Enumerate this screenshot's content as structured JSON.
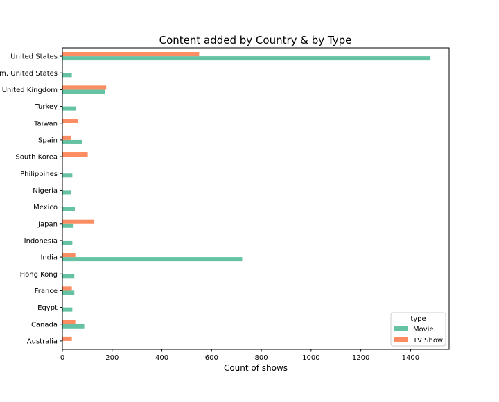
{
  "chart_data": {
    "type": "bar",
    "orientation": "horizontal",
    "title": "Content added by Country & by Type",
    "xlabel": "Count of shows",
    "ylabel": "",
    "xlim": [
      0,
      1555
    ],
    "xticks": [
      0,
      200,
      400,
      600,
      800,
      1000,
      1200,
      1400
    ],
    "grid": false,
    "legend_title": "type",
    "legend_position": "lower-right",
    "categories": [
      "Australia",
      "Canada",
      "Egypt",
      "France",
      "Hong Kong",
      "India",
      "Indonesia",
      "Japan",
      "Mexico",
      "Nigeria",
      "Philippines",
      "South Korea",
      "Spain",
      "Taiwan",
      "Turkey",
      "United Kingdom",
      "United Kingdom, United States",
      "United States"
    ],
    "series": [
      {
        "name": "Movie",
        "color": "#66c2a5",
        "values": [
          0,
          88,
          40,
          48,
          48,
          723,
          40,
          45,
          50,
          35,
          40,
          0,
          80,
          0,
          54,
          170,
          38,
          1480
        ]
      },
      {
        "name": "TV Show",
        "color": "#fc8d62",
        "values": [
          38,
          52,
          0,
          38,
          0,
          52,
          0,
          127,
          0,
          0,
          0,
          102,
          35,
          62,
          0,
          176,
          0,
          550
        ]
      }
    ]
  }
}
